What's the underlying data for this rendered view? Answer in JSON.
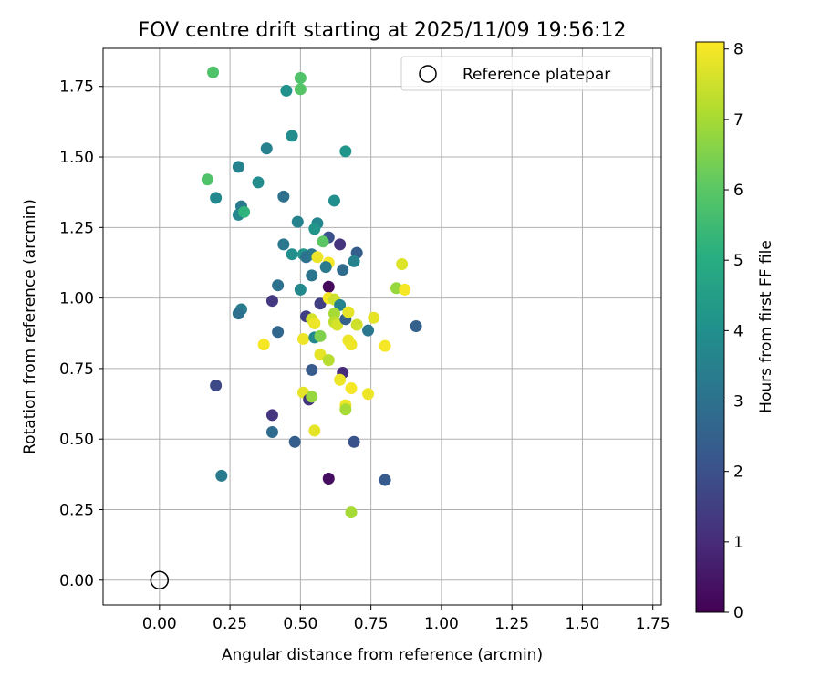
{
  "chart_data": {
    "type": "scatter",
    "title": "FOV centre drift starting at 2025/11/09 19:56:12",
    "xlabel": "Angular distance from reference (arcmin)",
    "ylabel": "Rotation from reference (arcmin)",
    "xlim": [
      -0.2,
      1.78
    ],
    "ylim": [
      -0.088,
      1.885
    ],
    "xticks": [
      "0.00",
      "0.25",
      "0.50",
      "0.75",
      "1.00",
      "1.25",
      "1.50",
      "1.75"
    ],
    "yticks": [
      "0.00",
      "0.25",
      "0.50",
      "0.75",
      "1.00",
      "1.25",
      "1.50",
      "1.75"
    ],
    "grid": true,
    "colormap": "viridis",
    "colorbar": {
      "label": "Hours from first FF file",
      "range": [
        0,
        8.1
      ],
      "ticks": [
        "0",
        "1",
        "2",
        "3",
        "4",
        "5",
        "6",
        "7",
        "8"
      ]
    },
    "legend": {
      "position": "top-right",
      "entries": [
        "Reference platepar"
      ]
    },
    "reference_point": {
      "x": 0.0,
      "y": 0.0
    },
    "points": [
      {
        "x": 0.19,
        "y": 1.8,
        "h": 5.8
      },
      {
        "x": 0.5,
        "y": 1.78,
        "h": 5.8
      },
      {
        "x": 0.5,
        "y": 1.74,
        "h": 5.9
      },
      {
        "x": 0.45,
        "y": 1.735,
        "h": 4.1
      },
      {
        "x": 0.47,
        "y": 1.575,
        "h": 3.9
      },
      {
        "x": 0.38,
        "y": 1.53,
        "h": 3.5
      },
      {
        "x": 0.66,
        "y": 1.52,
        "h": 4.2
      },
      {
        "x": 0.28,
        "y": 1.465,
        "h": 3.6
      },
      {
        "x": 0.17,
        "y": 1.42,
        "h": 5.8
      },
      {
        "x": 0.35,
        "y": 1.41,
        "h": 3.9
      },
      {
        "x": 0.2,
        "y": 1.355,
        "h": 3.8
      },
      {
        "x": 0.44,
        "y": 1.36,
        "h": 3.0
      },
      {
        "x": 0.62,
        "y": 1.345,
        "h": 4.0
      },
      {
        "x": 0.29,
        "y": 1.325,
        "h": 3.3
      },
      {
        "x": 0.28,
        "y": 1.295,
        "h": 3.7
      },
      {
        "x": 0.3,
        "y": 1.305,
        "h": 5.2
      },
      {
        "x": 0.49,
        "y": 1.27,
        "h": 3.6
      },
      {
        "x": 0.56,
        "y": 1.265,
        "h": 3.7
      },
      {
        "x": 0.55,
        "y": 1.245,
        "h": 4.2
      },
      {
        "x": 0.6,
        "y": 1.215,
        "h": 2.0
      },
      {
        "x": 0.64,
        "y": 1.19,
        "h": 1.2
      },
      {
        "x": 0.44,
        "y": 1.19,
        "h": 3.2
      },
      {
        "x": 0.58,
        "y": 1.2,
        "h": 6.0
      },
      {
        "x": 0.7,
        "y": 1.16,
        "h": 2.4
      },
      {
        "x": 0.47,
        "y": 1.155,
        "h": 4.0
      },
      {
        "x": 0.51,
        "y": 1.155,
        "h": 4.2
      },
      {
        "x": 0.52,
        "y": 1.145,
        "h": 3.0
      },
      {
        "x": 0.54,
        "y": 1.155,
        "h": 3.2
      },
      {
        "x": 0.56,
        "y": 1.145,
        "h": 7.9
      },
      {
        "x": 0.6,
        "y": 1.125,
        "h": 8.0
      },
      {
        "x": 0.59,
        "y": 1.11,
        "h": 3.3
      },
      {
        "x": 0.69,
        "y": 1.13,
        "h": 3.6
      },
      {
        "x": 0.65,
        "y": 1.1,
        "h": 2.8
      },
      {
        "x": 0.54,
        "y": 1.08,
        "h": 3.1
      },
      {
        "x": 0.86,
        "y": 1.12,
        "h": 7.7
      },
      {
        "x": 0.84,
        "y": 1.035,
        "h": 6.8
      },
      {
        "x": 0.87,
        "y": 1.03,
        "h": 8.0
      },
      {
        "x": 0.42,
        "y": 1.045,
        "h": 3.0
      },
      {
        "x": 0.5,
        "y": 1.03,
        "h": 3.8
      },
      {
        "x": 0.6,
        "y": 1.04,
        "h": 0.2
      },
      {
        "x": 0.4,
        "y": 0.99,
        "h": 1.3
      },
      {
        "x": 0.57,
        "y": 0.98,
        "h": 1.5
      },
      {
        "x": 0.6,
        "y": 1.0,
        "h": 8.0
      },
      {
        "x": 0.62,
        "y": 0.995,
        "h": 7.5
      },
      {
        "x": 0.64,
        "y": 0.975,
        "h": 3.6
      },
      {
        "x": 0.29,
        "y": 0.96,
        "h": 3.4
      },
      {
        "x": 0.28,
        "y": 0.945,
        "h": 3.0
      },
      {
        "x": 0.52,
        "y": 0.935,
        "h": 1.5
      },
      {
        "x": 0.54,
        "y": 0.925,
        "h": 7.6
      },
      {
        "x": 0.55,
        "y": 0.91,
        "h": 7.9
      },
      {
        "x": 0.62,
        "y": 0.945,
        "h": 7.0
      },
      {
        "x": 0.62,
        "y": 0.915,
        "h": 7.3
      },
      {
        "x": 0.63,
        "y": 0.905,
        "h": 7.6
      },
      {
        "x": 0.66,
        "y": 0.925,
        "h": 2.5
      },
      {
        "x": 0.67,
        "y": 0.95,
        "h": 7.8
      },
      {
        "x": 0.76,
        "y": 0.93,
        "h": 7.8
      },
      {
        "x": 0.7,
        "y": 0.905,
        "h": 7.5
      },
      {
        "x": 0.74,
        "y": 0.885,
        "h": 3.2
      },
      {
        "x": 0.91,
        "y": 0.9,
        "h": 2.5
      },
      {
        "x": 0.42,
        "y": 0.88,
        "h": 2.7
      },
      {
        "x": 0.51,
        "y": 0.855,
        "h": 7.9
      },
      {
        "x": 0.55,
        "y": 0.86,
        "h": 3.8
      },
      {
        "x": 0.57,
        "y": 0.865,
        "h": 6.5
      },
      {
        "x": 0.67,
        "y": 0.85,
        "h": 7.9
      },
      {
        "x": 0.68,
        "y": 0.835,
        "h": 7.9
      },
      {
        "x": 0.37,
        "y": 0.835,
        "h": 8.0
      },
      {
        "x": 0.8,
        "y": 0.83,
        "h": 8.0
      },
      {
        "x": 0.57,
        "y": 0.8,
        "h": 7.8
      },
      {
        "x": 0.6,
        "y": 0.78,
        "h": 7.2
      },
      {
        "x": 0.54,
        "y": 0.745,
        "h": 2.3
      },
      {
        "x": 0.65,
        "y": 0.735,
        "h": 1.0
      },
      {
        "x": 0.64,
        "y": 0.71,
        "h": 7.9
      },
      {
        "x": 0.2,
        "y": 0.69,
        "h": 1.8
      },
      {
        "x": 0.68,
        "y": 0.68,
        "h": 8.0
      },
      {
        "x": 0.74,
        "y": 0.66,
        "h": 7.9
      },
      {
        "x": 0.51,
        "y": 0.665,
        "h": 7.8
      },
      {
        "x": 0.53,
        "y": 0.64,
        "h": 1.2
      },
      {
        "x": 0.54,
        "y": 0.65,
        "h": 6.8
      },
      {
        "x": 0.66,
        "y": 0.62,
        "h": 7.9
      },
      {
        "x": 0.66,
        "y": 0.605,
        "h": 7.0
      },
      {
        "x": 0.4,
        "y": 0.585,
        "h": 1.2
      },
      {
        "x": 0.55,
        "y": 0.53,
        "h": 7.8
      },
      {
        "x": 0.4,
        "y": 0.525,
        "h": 2.8
      },
      {
        "x": 0.48,
        "y": 0.49,
        "h": 2.4
      },
      {
        "x": 0.69,
        "y": 0.49,
        "h": 2.1
      },
      {
        "x": 0.6,
        "y": 0.36,
        "h": 0.3
      },
      {
        "x": 0.8,
        "y": 0.355,
        "h": 2.3
      },
      {
        "x": 0.22,
        "y": 0.37,
        "h": 3.3
      },
      {
        "x": 0.68,
        "y": 0.24,
        "h": 7.0
      }
    ]
  }
}
